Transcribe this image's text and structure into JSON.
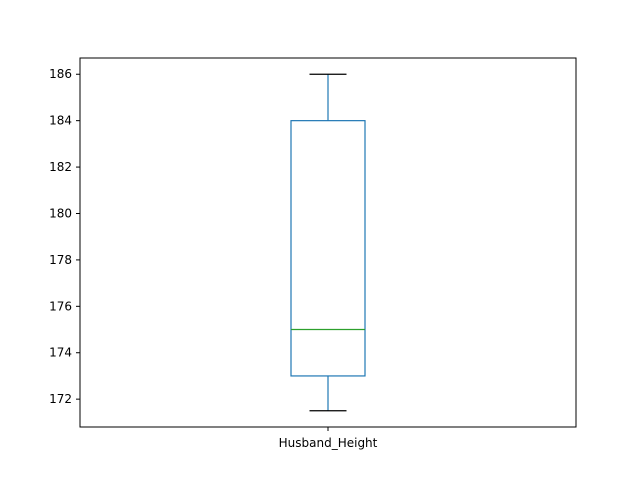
{
  "chart_data": {
    "type": "box",
    "categories": [
      "Husband_Height"
    ],
    "boxes": [
      {
        "category": "Husband_Height",
        "whisker_low": 171.5,
        "q1": 173,
        "median": 175,
        "q3": 184,
        "whisker_high": 186
      }
    ],
    "title": "",
    "xlabel": "",
    "ylabel": "",
    "ylim": [
      170.8,
      186.7
    ],
    "yticks": [
      172,
      174,
      176,
      178,
      180,
      182,
      184,
      186
    ],
    "grid": false,
    "colors": {
      "box": "#1f77b4",
      "whisker": "#1f77b4",
      "cap": "#000000",
      "median": "#2ca02c",
      "frame": "#000000"
    }
  }
}
